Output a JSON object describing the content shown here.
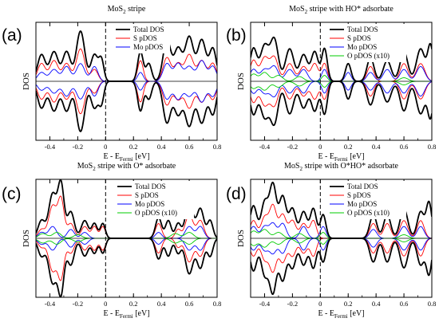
{
  "figure": {
    "ylabel": "DOS",
    "xlabel_main": "E - E",
    "xlabel_sub": "Fermi",
    "xlabel_unit": " [eV]",
    "x_tick_labels": [
      "-0.4",
      "-0.2",
      "0",
      "0.2",
      "0.4",
      "0.6",
      "0.8"
    ]
  },
  "chart_data": [
    {
      "type": "line",
      "panel_label": "(a)",
      "title_main": "MoS",
      "title_sub": "2",
      "title_rest": " stripe",
      "xlim": [
        -0.5,
        0.8
      ],
      "ylim": [
        -1,
        1
      ],
      "legend_position": "top-right",
      "legend": [
        {
          "name": "Total DOS",
          "color": "#000000"
        },
        {
          "name": "S pDOS",
          "color": "#ff0000"
        },
        {
          "name": "Mo pDOS",
          "color": "#0000ff"
        }
      ],
      "series": [
        {
          "name": "Total DOS",
          "color": "#000000",
          "peaks": [
            [
              -0.46,
              0.45,
              0.028
            ],
            [
              -0.37,
              0.5,
              0.03
            ],
            [
              -0.28,
              0.5,
              0.028
            ],
            [
              -0.18,
              0.85,
              0.03
            ],
            [
              -0.08,
              0.45,
              0.025
            ],
            [
              -0.03,
              0.35,
              0.018
            ],
            [
              0.25,
              0.5,
              0.02
            ],
            [
              0.31,
              0.3,
              0.02
            ],
            [
              0.44,
              0.7,
              0.028
            ],
            [
              0.52,
              0.55,
              0.028
            ],
            [
              0.6,
              0.75,
              0.03
            ],
            [
              0.69,
              0.7,
              0.03
            ],
            [
              0.77,
              0.55,
              0.025
            ]
          ]
        },
        {
          "name": "S pDOS",
          "color": "#ff0000",
          "peaks": [
            [
              -0.46,
              0.3,
              0.028
            ],
            [
              -0.37,
              0.35,
              0.03
            ],
            [
              -0.28,
              0.3,
              0.028
            ],
            [
              -0.18,
              0.55,
              0.03
            ],
            [
              -0.08,
              0.2,
              0.025
            ],
            [
              0.25,
              0.35,
              0.02
            ],
            [
              0.44,
              0.4,
              0.028
            ],
            [
              0.52,
              0.3,
              0.028
            ],
            [
              0.6,
              0.45,
              0.03
            ],
            [
              0.69,
              0.35,
              0.03
            ],
            [
              0.77,
              0.3,
              0.025
            ]
          ]
        },
        {
          "name": "Mo pDOS",
          "color": "#0000ff",
          "peaks": [
            [
              -0.46,
              0.15,
              0.028
            ],
            [
              -0.37,
              0.2,
              0.03
            ],
            [
              -0.28,
              0.25,
              0.028
            ],
            [
              -0.18,
              0.3,
              0.03
            ],
            [
              -0.08,
              0.25,
              0.025
            ],
            [
              0.25,
              0.15,
              0.02
            ],
            [
              0.44,
              0.3,
              0.028
            ],
            [
              0.52,
              0.3,
              0.028
            ],
            [
              0.6,
              0.25,
              0.03
            ],
            [
              0.69,
              0.35,
              0.03
            ],
            [
              0.77,
              0.25,
              0.025
            ]
          ]
        }
      ]
    },
    {
      "type": "line",
      "panel_label": "(b)",
      "title_main": "MoS",
      "title_sub": "2",
      "title_rest": " stripe with HO* adsorbate",
      "xlim": [
        -0.5,
        0.8
      ],
      "ylim": [
        -1,
        1
      ],
      "legend_position": "top-right",
      "legend": [
        {
          "name": "Total DOS",
          "color": "#000000"
        },
        {
          "name": "S pDOS",
          "color": "#ff0000"
        },
        {
          "name": "Mo pDOS",
          "color": "#0000ff"
        },
        {
          "name": "O pDOS (x10)",
          "color": "#00cc00"
        }
      ],
      "series": [
        {
          "name": "Total DOS",
          "color": "#000000",
          "peaks": [
            [
              -0.48,
              0.55,
              0.025
            ],
            [
              -0.4,
              0.6,
              0.03
            ],
            [
              -0.33,
              0.7,
              0.028
            ],
            [
              -0.22,
              0.55,
              0.03
            ],
            [
              -0.12,
              0.45,
              0.028
            ],
            [
              -0.04,
              0.5,
              0.025
            ],
            [
              0.03,
              0.55,
              0.02
            ],
            [
              0.2,
              0.3,
              0.02
            ],
            [
              0.36,
              0.4,
              0.025
            ],
            [
              0.48,
              0.35,
              0.028
            ],
            [
              0.6,
              0.5,
              0.028
            ],
            [
              0.72,
              0.55,
              0.03
            ],
            [
              0.79,
              0.6,
              0.02
            ]
          ]
        },
        {
          "name": "S pDOS",
          "color": "#ff0000",
          "peaks": [
            [
              -0.48,
              0.35,
              0.025
            ],
            [
              -0.4,
              0.4,
              0.03
            ],
            [
              -0.33,
              0.4,
              0.028
            ],
            [
              -0.22,
              0.3,
              0.03
            ],
            [
              -0.12,
              0.25,
              0.028
            ],
            [
              -0.04,
              0.3,
              0.025
            ],
            [
              0.03,
              0.3,
              0.02
            ],
            [
              0.36,
              0.25,
              0.025
            ],
            [
              0.6,
              0.3,
              0.028
            ],
            [
              0.72,
              0.3,
              0.03
            ]
          ]
        },
        {
          "name": "Mo pDOS",
          "color": "#0000ff",
          "peaks": [
            [
              -0.48,
              0.2,
              0.025
            ],
            [
              -0.4,
              0.2,
              0.03
            ],
            [
              -0.33,
              0.25,
              0.028
            ],
            [
              -0.22,
              0.2,
              0.03
            ],
            [
              -0.12,
              0.2,
              0.028
            ],
            [
              0.03,
              0.2,
              0.02
            ],
            [
              0.2,
              0.15,
              0.02
            ],
            [
              0.36,
              0.15,
              0.025
            ],
            [
              0.48,
              0.2,
              0.028
            ],
            [
              0.6,
              0.2,
              0.028
            ],
            [
              0.72,
              0.25,
              0.03
            ]
          ]
        },
        {
          "name": "O pDOS (x10)",
          "color": "#00cc00",
          "peaks": [
            [
              -0.48,
              0.12,
              0.025
            ],
            [
              -0.4,
              0.15,
              0.03
            ],
            [
              -0.3,
              0.1,
              0.03
            ],
            [
              -0.15,
              0.08,
              0.03
            ],
            [
              0.03,
              0.1,
              0.02
            ],
            [
              0.6,
              0.06,
              0.03
            ]
          ]
        }
      ]
    },
    {
      "type": "line",
      "panel_label": "(c)",
      "title_main": "MoS",
      "title_sub": "2",
      "title_rest": " stripe with O* adsorbate",
      "xlim": [
        -0.5,
        0.8
      ],
      "ylim": [
        -1,
        1
      ],
      "legend_position": "top-right",
      "legend": [
        {
          "name": "Total DOS",
          "color": "#000000"
        },
        {
          "name": "S pDOS",
          "color": "#ff0000"
        },
        {
          "name": "Mo pDOS",
          "color": "#0000ff"
        },
        {
          "name": "O pDOS (x10)",
          "color": "#00cc00"
        }
      ],
      "series": [
        {
          "name": "Total DOS",
          "color": "#000000",
          "peaks": [
            [
              -0.46,
              0.3,
              0.025
            ],
            [
              -0.38,
              0.75,
              0.028
            ],
            [
              -0.32,
              0.9,
              0.022
            ],
            [
              -0.25,
              0.45,
              0.025
            ],
            [
              -0.15,
              0.3,
              0.025
            ],
            [
              -0.08,
              0.25,
              0.02
            ],
            [
              -0.02,
              0.25,
              0.018
            ],
            [
              0.38,
              0.35,
              0.022
            ],
            [
              0.45,
              0.3,
              0.02
            ],
            [
              0.52,
              0.25,
              0.02
            ],
            [
              0.6,
              0.6,
              0.028
            ],
            [
              0.68,
              0.5,
              0.025
            ],
            [
              0.75,
              0.3,
              0.02
            ]
          ]
        },
        {
          "name": "S pDOS",
          "color": "#ff0000",
          "peaks": [
            [
              -0.46,
              0.15,
              0.025
            ],
            [
              -0.38,
              0.55,
              0.028
            ],
            [
              -0.32,
              0.65,
              0.022
            ],
            [
              -0.25,
              0.25,
              0.025
            ],
            [
              -0.15,
              0.2,
              0.025
            ],
            [
              -0.08,
              0.2,
              0.02
            ],
            [
              -0.02,
              0.2,
              0.018
            ],
            [
              0.38,
              0.25,
              0.022
            ],
            [
              0.52,
              0.15,
              0.02
            ],
            [
              0.6,
              0.4,
              0.028
            ],
            [
              0.68,
              0.3,
              0.025
            ]
          ]
        },
        {
          "name": "Mo pDOS",
          "color": "#0000ff",
          "peaks": [
            [
              -0.46,
              0.1,
              0.025
            ],
            [
              -0.38,
              0.2,
              0.028
            ],
            [
              -0.25,
              0.15,
              0.025
            ],
            [
              -0.15,
              0.1,
              0.025
            ],
            [
              0.38,
              0.1,
              0.022
            ],
            [
              0.6,
              0.2,
              0.028
            ],
            [
              0.68,
              0.2,
              0.025
            ]
          ]
        },
        {
          "name": "O pDOS (x10)",
          "color": "#00cc00",
          "peaks": [
            [
              -0.45,
              0.08,
              0.03
            ],
            [
              -0.35,
              0.1,
              0.03
            ],
            [
              -0.2,
              0.06,
              0.03
            ],
            [
              0.5,
              0.08,
              0.03
            ],
            [
              0.6,
              0.1,
              0.03
            ]
          ]
        }
      ]
    },
    {
      "type": "line",
      "panel_label": "(d)",
      "title_main": "MoS",
      "title_sub": "2",
      "title_rest": " stripe with O*HO* adsorbate",
      "xlim": [
        -0.5,
        0.8
      ],
      "ylim": [
        -1,
        1
      ],
      "legend_position": "top-right",
      "legend": [
        {
          "name": "Total DOS",
          "color": "#000000"
        },
        {
          "name": "S pDOS",
          "color": "#ff0000"
        },
        {
          "name": "Mo pDOS",
          "color": "#0000ff"
        },
        {
          "name": "O pDOS (x10)",
          "color": "#00cc00"
        }
      ],
      "series": [
        {
          "name": "Total DOS",
          "color": "#000000",
          "peaks": [
            [
              -0.48,
              0.55,
              0.025
            ],
            [
              -0.4,
              0.6,
              0.025
            ],
            [
              -0.34,
              0.9,
              0.025
            ],
            [
              -0.27,
              0.7,
              0.025
            ],
            [
              -0.2,
              0.5,
              0.025
            ],
            [
              -0.12,
              0.45,
              0.025
            ],
            [
              -0.05,
              0.5,
              0.022
            ],
            [
              0.02,
              0.4,
              0.02
            ],
            [
              0.38,
              0.4,
              0.025
            ],
            [
              0.48,
              0.4,
              0.025
            ],
            [
              0.6,
              0.5,
              0.028
            ],
            [
              0.72,
              0.45,
              0.025
            ],
            [
              0.78,
              0.6,
              0.02
            ]
          ]
        },
        {
          "name": "S pDOS",
          "color": "#ff0000",
          "peaks": [
            [
              -0.48,
              0.3,
              0.025
            ],
            [
              -0.4,
              0.35,
              0.025
            ],
            [
              -0.34,
              0.55,
              0.025
            ],
            [
              -0.27,
              0.4,
              0.025
            ],
            [
              -0.2,
              0.3,
              0.025
            ],
            [
              -0.12,
              0.25,
              0.025
            ],
            [
              -0.05,
              0.3,
              0.022
            ],
            [
              0.38,
              0.25,
              0.025
            ],
            [
              0.48,
              0.25,
              0.025
            ],
            [
              0.6,
              0.3,
              0.028
            ],
            [
              0.72,
              0.3,
              0.025
            ]
          ]
        },
        {
          "name": "Mo pDOS",
          "color": "#0000ff",
          "peaks": [
            [
              -0.48,
              0.2,
              0.025
            ],
            [
              -0.4,
              0.2,
              0.025
            ],
            [
              -0.34,
              0.25,
              0.025
            ],
            [
              -0.27,
              0.25,
              0.025
            ],
            [
              -0.12,
              0.2,
              0.025
            ],
            [
              0.02,
              0.2,
              0.02
            ],
            [
              0.38,
              0.15,
              0.025
            ],
            [
              0.6,
              0.2,
              0.028
            ],
            [
              0.72,
              0.2,
              0.025
            ]
          ]
        },
        {
          "name": "O pDOS (x10)",
          "color": "#00cc00",
          "peaks": [
            [
              -0.48,
              0.12,
              0.025
            ],
            [
              -0.4,
              0.15,
              0.03
            ],
            [
              -0.3,
              0.1,
              0.03
            ],
            [
              -0.15,
              0.08,
              0.03
            ],
            [
              0.02,
              0.1,
              0.02
            ],
            [
              0.6,
              0.06,
              0.03
            ]
          ]
        }
      ]
    }
  ]
}
